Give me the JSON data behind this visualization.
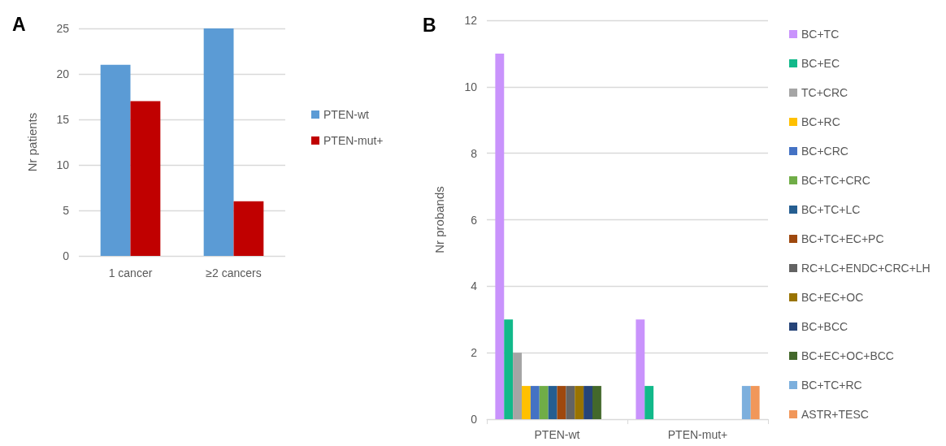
{
  "chart_data": [
    {
      "type": "bar",
      "title": "A",
      "ylabel": "Nr patients",
      "categories": [
        "1 cancer",
        "≥2 cancers"
      ],
      "series": [
        {
          "name": "PTEN-wt",
          "color": "#5b9bd5",
          "values": [
            21,
            25
          ]
        },
        {
          "name": "PTEN-mut+",
          "color": "#c00000",
          "values": [
            17,
            6
          ]
        }
      ],
      "ylim": [
        0,
        25
      ],
      "yticks": [
        0,
        5,
        10,
        15,
        20,
        25
      ],
      "grid": "y",
      "legend": "right"
    },
    {
      "type": "bar",
      "title": "B",
      "ylabel": "Nr probands",
      "categories": [
        "PTEN-wt",
        "PTEN-mut+"
      ],
      "series": [
        {
          "name": "BC+TC",
          "color": "#c993fc",
          "values": [
            11,
            3
          ]
        },
        {
          "name": "BC+EC",
          "color": "#12b98a",
          "values": [
            3,
            1
          ]
        },
        {
          "name": "TC+CRC",
          "color": "#a5a5a5",
          "values": [
            2,
            null
          ]
        },
        {
          "name": "BC+RC",
          "color": "#ffc000",
          "values": [
            1,
            null
          ]
        },
        {
          "name": "BC+CRC",
          "color": "#4472c4",
          "values": [
            1,
            null
          ]
        },
        {
          "name": "BC+TC+CRC",
          "color": "#70ad47",
          "values": [
            1,
            null
          ]
        },
        {
          "name": "BC+TC+LC",
          "color": "#255e91",
          "values": [
            1,
            null
          ]
        },
        {
          "name": "BC+TC+EC+PC",
          "color": "#9e480e",
          "values": [
            1,
            null
          ]
        },
        {
          "name": "RC+LC+ENDC+CRC+LH",
          "color": "#636363",
          "values": [
            1,
            null
          ]
        },
        {
          "name": "BC+EC+OC",
          "color": "#997300",
          "values": [
            1,
            null
          ]
        },
        {
          "name": "BC+BCC",
          "color": "#264478",
          "values": [
            1,
            null
          ]
        },
        {
          "name": "BC+EC+OC+BCC",
          "color": "#43682b",
          "values": [
            1,
            null
          ]
        },
        {
          "name": "BC+TC+RC",
          "color": "#7cafdd",
          "values": [
            null,
            1
          ]
        },
        {
          "name": "ASTR+TESC",
          "color": "#f1975a",
          "values": [
            null,
            1
          ]
        }
      ],
      "ylim": [
        0,
        12
      ],
      "yticks": [
        0,
        2,
        4,
        6,
        8,
        10,
        12
      ],
      "grid": "y",
      "legend": "right"
    }
  ]
}
